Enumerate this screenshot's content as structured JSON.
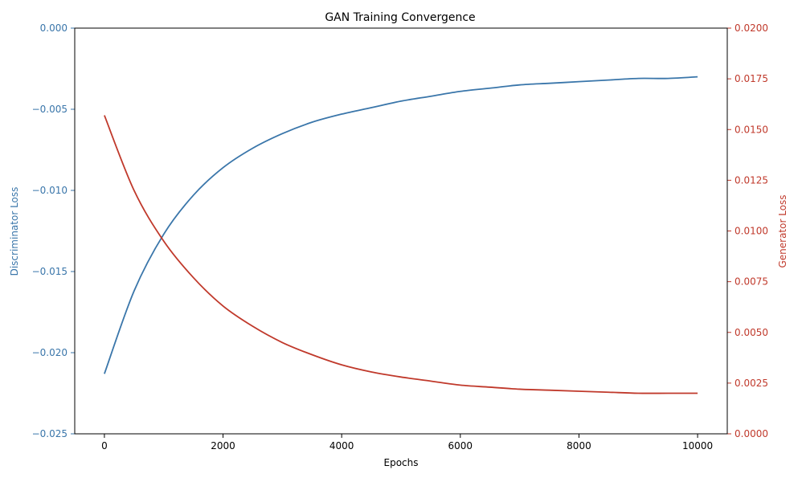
{
  "chart_data": {
    "type": "line",
    "title": "GAN Training Convergence",
    "xlabel": "Epochs",
    "ylabel_left": "Discriminator Loss",
    "ylabel_right": "Generator Loss",
    "xlim": [
      -500,
      10500
    ],
    "ylim_left": [
      -0.025,
      0.0
    ],
    "ylim_right": [
      0.0,
      0.02
    ],
    "x_ticks": [
      0,
      2000,
      4000,
      6000,
      8000,
      10000
    ],
    "x_tick_labels": [
      "0",
      "2000",
      "4000",
      "6000",
      "8000",
      "10000"
    ],
    "y_left_ticks": [
      -0.025,
      -0.02,
      -0.015,
      -0.01,
      -0.005,
      0.0
    ],
    "y_left_tick_labels": [
      "−0.025",
      "−0.020",
      "−0.015",
      "−0.010",
      "−0.005",
      "0.000"
    ],
    "y_right_ticks": [
      0.0,
      0.0025,
      0.005,
      0.0075,
      0.01,
      0.0125,
      0.015,
      0.0175,
      0.02
    ],
    "y_right_tick_labels": [
      "0.0000",
      "0.0025",
      "0.0050",
      "0.0075",
      "0.0100",
      "0.0125",
      "0.0150",
      "0.0175",
      "0.0200"
    ],
    "grid": false,
    "colors": {
      "discriminator": "#3a76aa",
      "generator": "#c0392b",
      "axis": "#000000"
    },
    "series": [
      {
        "axis": "left",
        "x": [
          0,
          500,
          1000,
          1500,
          2000,
          2500,
          3000,
          3500,
          4000,
          4500,
          5000,
          5500,
          6000,
          6500,
          7000,
          7500,
          8000,
          8500,
          9000,
          9500,
          10000
        ],
        "values": [
          -0.0213,
          -0.0162,
          -0.0127,
          -0.0103,
          -0.0086,
          -0.0074,
          -0.0065,
          -0.0058,
          -0.0053,
          -0.0049,
          -0.0045,
          -0.0042,
          -0.0039,
          -0.0037,
          -0.0035,
          -0.0034,
          -0.0033,
          -0.0032,
          -0.0031,
          -0.0031,
          -0.003
        ]
      },
      {
        "axis": "right",
        "x": [
          0,
          500,
          1000,
          1500,
          2000,
          2500,
          3000,
          3500,
          4000,
          4500,
          5000,
          5500,
          6000,
          6500,
          7000,
          7500,
          8000,
          8500,
          9000,
          9500,
          10000
        ],
        "values": [
          0.0157,
          0.012,
          0.0095,
          0.0077,
          0.0063,
          0.0053,
          0.0045,
          0.0039,
          0.0034,
          0.00305,
          0.0028,
          0.0026,
          0.0024,
          0.0023,
          0.0022,
          0.00215,
          0.0021,
          0.00205,
          0.002,
          0.002,
          0.002
        ]
      }
    ]
  }
}
